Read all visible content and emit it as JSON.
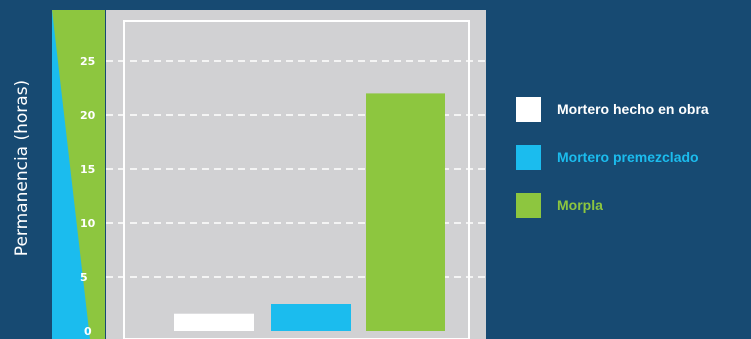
{
  "chart_data": {
    "type": "bar",
    "ylabel": "Permanencia (horas)",
    "xlabel": "",
    "y_ticks": [
      0,
      5,
      10,
      15,
      20,
      25
    ],
    "ylim": [
      0,
      30
    ],
    "grid": true,
    "legend_position": "right",
    "categories": [
      "Mortero hecho en obra",
      "Mortero premezclado",
      "Morpla"
    ],
    "values": [
      1.6,
      2.5,
      22
    ],
    "colors": [
      "#ffffff",
      "#1bbcee",
      "#8dc63f"
    ]
  },
  "legend": {
    "items": [
      {
        "label": "Mortero hecho en obra",
        "color": "#ffffff"
      },
      {
        "label": "Mortero premezclado",
        "color": "#1bbcee"
      },
      {
        "label": "Morpla",
        "color": "#8dc63f"
      }
    ]
  }
}
